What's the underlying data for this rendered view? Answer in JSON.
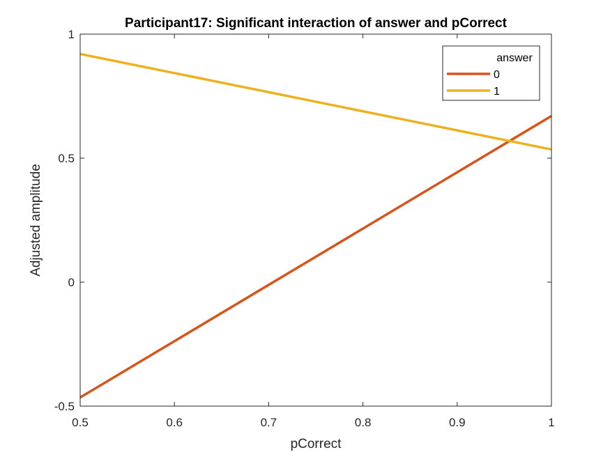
{
  "chart_data": {
    "type": "line",
    "title": "Participant17: Significant interaction of answer and pCorrect",
    "xlabel": "pCorrect",
    "ylabel": "Adjusted amplitude",
    "xlim": [
      0.5,
      1
    ],
    "ylim": [
      -0.5,
      1
    ],
    "xticks": [
      0.5,
      0.6,
      0.7,
      0.8,
      0.9,
      1
    ],
    "xtick_labels": [
      "0.5",
      "0.6",
      "0.7",
      "0.8",
      "0.9",
      "1"
    ],
    "yticks": [
      -0.5,
      0,
      0.5,
      1
    ],
    "ytick_labels": [
      "-0.5",
      "0",
      "0.5",
      "1"
    ],
    "grid": false,
    "legend": {
      "title": "answer",
      "placement": "top-right"
    },
    "series": [
      {
        "name": "0",
        "color": "#D95319",
        "x": [
          0.5,
          1
        ],
        "y": [
          -0.465,
          0.67
        ]
      },
      {
        "name": "1",
        "color": "#EDB120",
        "x": [
          0.5,
          1
        ],
        "y": [
          0.92,
          0.535
        ]
      }
    ]
  }
}
